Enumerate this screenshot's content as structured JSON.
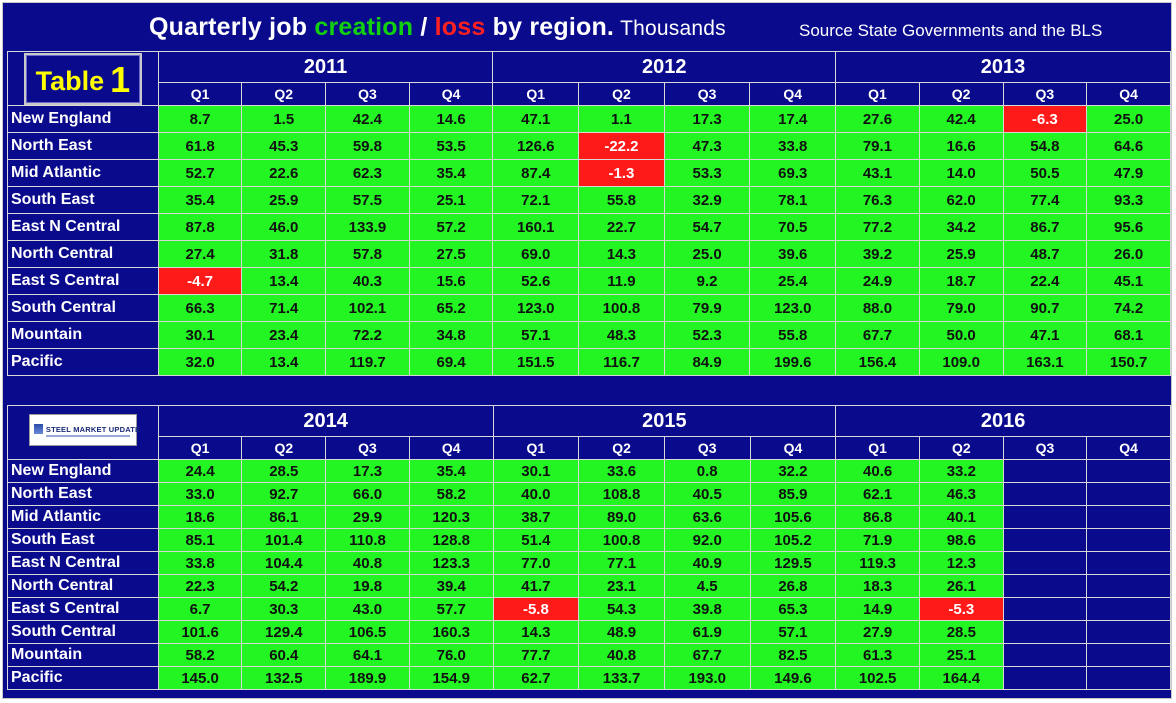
{
  "title": {
    "part1": "Quarterly job ",
    "creation": "creation",
    "slash": " / ",
    "loss": "loss",
    "part2": " by region.",
    "units": "Thousands",
    "source": "Source State Governments and the BLS"
  },
  "table_label": {
    "word": "Table",
    "number": "1"
  },
  "logo": {
    "text": "STEEL MARKET UPDATE"
  },
  "quarters": [
    "Q1",
    "Q2",
    "Q3",
    "Q4"
  ],
  "regions": [
    "New England",
    "North East",
    "Mid Atlantic",
    "South East",
    "East N Central",
    "North Central",
    "East S Central",
    "South Central",
    "Mountain",
    "Pacific"
  ],
  "colors": {
    "background": "#0a0a8c",
    "positive": "#22f522",
    "negative": "#ff1a1a",
    "label": "#ffff00"
  },
  "chart_data": {
    "type": "table",
    "title": "Quarterly job creation / loss by region. Thousands",
    "source": "Source State Governments and the BLS",
    "years": [
      "2011",
      "2012",
      "2013",
      "2014",
      "2015",
      "2016"
    ],
    "quarters": [
      "Q1",
      "Q2",
      "Q3",
      "Q4"
    ],
    "regions": [
      "New England",
      "North East",
      "Mid Atlantic",
      "South East",
      "East N Central",
      "North Central",
      "East S Central",
      "South Central",
      "Mountain",
      "Pacific"
    ],
    "values": {
      "2011": [
        [
          8.7,
          1.5,
          42.4,
          14.6
        ],
        [
          61.8,
          45.3,
          59.8,
          53.5
        ],
        [
          52.7,
          22.6,
          62.3,
          35.4
        ],
        [
          35.4,
          25.9,
          57.5,
          25.1
        ],
        [
          87.8,
          46.0,
          133.9,
          57.2
        ],
        [
          27.4,
          31.8,
          57.8,
          27.5
        ],
        [
          -4.7,
          13.4,
          40.3,
          15.6
        ],
        [
          66.3,
          71.4,
          102.1,
          65.2
        ],
        [
          30.1,
          23.4,
          72.2,
          34.8
        ],
        [
          32.0,
          13.4,
          119.7,
          69.4
        ]
      ],
      "2012": [
        [
          47.1,
          1.1,
          17.3,
          17.4
        ],
        [
          126.6,
          -22.2,
          47.3,
          33.8
        ],
        [
          87.4,
          -1.3,
          53.3,
          69.3
        ],
        [
          72.1,
          55.8,
          32.9,
          78.1
        ],
        [
          160.1,
          22.7,
          54.7,
          70.5
        ],
        [
          69.0,
          14.3,
          25.0,
          39.6
        ],
        [
          52.6,
          11.9,
          9.2,
          25.4
        ],
        [
          123.0,
          100.8,
          79.9,
          123.0
        ],
        [
          57.1,
          48.3,
          52.3,
          55.8
        ],
        [
          151.5,
          116.7,
          84.9,
          199.6
        ]
      ],
      "2013": [
        [
          27.6,
          42.4,
          -6.3,
          25.0
        ],
        [
          79.1,
          16.6,
          54.8,
          64.6
        ],
        [
          43.1,
          14.0,
          50.5,
          47.9
        ],
        [
          76.3,
          62.0,
          77.4,
          93.3
        ],
        [
          77.2,
          34.2,
          86.7,
          95.6
        ],
        [
          39.2,
          25.9,
          48.7,
          26.0
        ],
        [
          24.9,
          18.7,
          22.4,
          45.1
        ],
        [
          88.0,
          79.0,
          90.7,
          74.2
        ],
        [
          67.7,
          50.0,
          47.1,
          68.1
        ],
        [
          156.4,
          109.0,
          163.1,
          150.7
        ]
      ],
      "2014": [
        [
          24.4,
          28.5,
          17.3,
          35.4
        ],
        [
          33.0,
          92.7,
          66.0,
          58.2
        ],
        [
          18.6,
          86.1,
          29.9,
          120.3
        ],
        [
          85.1,
          101.4,
          110.8,
          128.8
        ],
        [
          33.8,
          104.4,
          40.8,
          123.3
        ],
        [
          22.3,
          54.2,
          19.8,
          39.4
        ],
        [
          6.7,
          30.3,
          43.0,
          57.7
        ],
        [
          101.6,
          129.4,
          106.5,
          160.3
        ],
        [
          58.2,
          60.4,
          64.1,
          76.0
        ],
        [
          145.0,
          132.5,
          189.9,
          154.9
        ]
      ],
      "2015": [
        [
          30.1,
          33.6,
          0.8,
          32.2
        ],
        [
          40.0,
          108.8,
          40.5,
          85.9
        ],
        [
          38.7,
          89.0,
          63.6,
          105.6
        ],
        [
          51.4,
          100.8,
          92.0,
          105.2
        ],
        [
          77.0,
          77.1,
          40.9,
          129.5
        ],
        [
          41.7,
          23.1,
          4.5,
          26.8
        ],
        [
          -5.8,
          54.3,
          39.8,
          65.3
        ],
        [
          14.3,
          48.9,
          61.9,
          57.1
        ],
        [
          77.7,
          40.8,
          67.7,
          82.5
        ],
        [
          62.7,
          133.7,
          193.0,
          149.6
        ]
      ],
      "2016": [
        [
          40.6,
          33.2,
          null,
          null
        ],
        [
          62.1,
          46.3,
          null,
          null
        ],
        [
          86.8,
          40.1,
          null,
          null
        ],
        [
          71.9,
          98.6,
          null,
          null
        ],
        [
          119.3,
          12.3,
          null,
          null
        ],
        [
          18.3,
          26.1,
          null,
          null
        ],
        [
          14.9,
          -5.3,
          null,
          null
        ],
        [
          27.9,
          28.5,
          null,
          null
        ],
        [
          61.3,
          25.1,
          null,
          null
        ],
        [
          102.5,
          164.4,
          null,
          null
        ]
      ]
    }
  }
}
